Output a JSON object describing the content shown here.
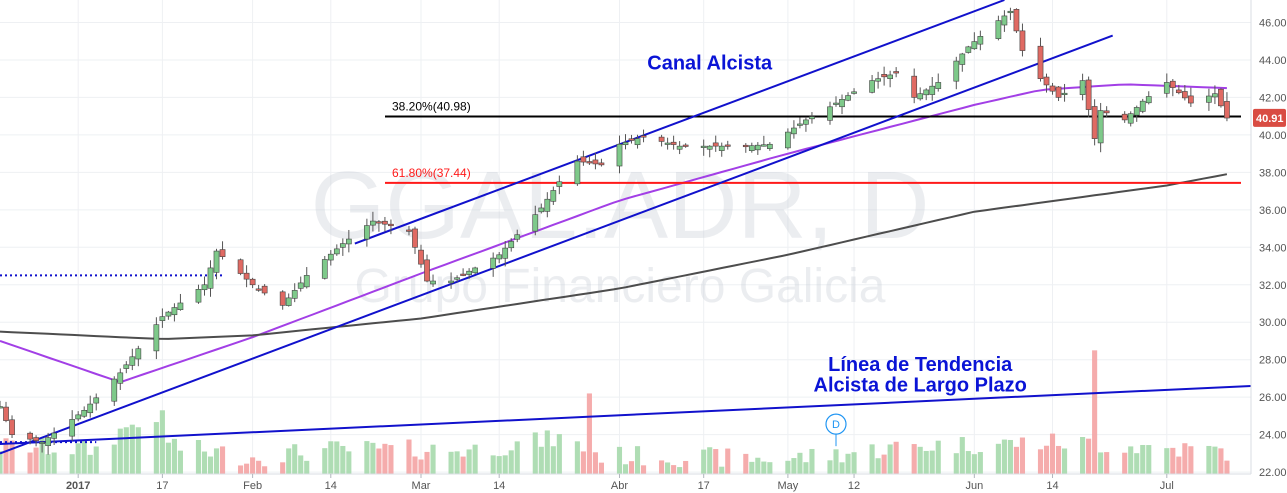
{
  "chart_data": {
    "type": "candlestick",
    "symbol_watermark": "GGAL.ADR, D",
    "company_watermark": "Grupo Financiero Galicia",
    "y_axis": {
      "ticks": [
        22.0,
        24.0,
        26.0,
        28.0,
        30.0,
        32.0,
        34.0,
        36.0,
        38.0,
        40.0,
        42.0,
        44.0,
        46.0
      ],
      "range": [
        21.9,
        47.2
      ]
    },
    "x_axis": {
      "range": [
        "2016-12-21",
        "2017-07-17"
      ],
      "ticks": [
        {
          "label": "2017",
          "date": "2017-01-03",
          "bold": true
        },
        {
          "label": "17",
          "date": "2017-01-17"
        },
        {
          "label": "Feb",
          "date": "2017-02-01"
        },
        {
          "label": "14",
          "date": "2017-02-14"
        },
        {
          "label": "Mar",
          "date": "2017-03-01"
        },
        {
          "label": "14",
          "date": "2017-03-14"
        },
        {
          "label": "Abr",
          "date": "2017-04-03"
        },
        {
          "label": "17",
          "date": "2017-04-17"
        },
        {
          "label": "May",
          "date": "2017-05-01"
        },
        {
          "label": "12",
          "date": "2017-05-12"
        },
        {
          "label": "Jun",
          "date": "2017-06-01"
        },
        {
          "label": "14",
          "date": "2017-06-14"
        },
        {
          "label": "Jul",
          "date": "2017-07-03"
        }
      ]
    },
    "price_waypoints": [
      [
        "2016-12-21",
        25.5
      ],
      [
        "2016-12-23",
        24.0
      ],
      [
        "2016-12-28",
        23.6
      ],
      [
        "2017-01-04",
        25.3
      ],
      [
        "2017-01-10",
        27.3
      ],
      [
        "2017-01-17",
        30.3
      ],
      [
        "2017-01-24",
        32.0
      ],
      [
        "2017-01-26",
        33.8
      ],
      [
        "2017-02-01",
        32.0
      ],
      [
        "2017-02-06",
        30.9
      ],
      [
        "2017-02-10",
        32.5
      ],
      [
        "2017-02-16",
        34.2
      ],
      [
        "2017-02-21",
        35.4
      ],
      [
        "2017-02-27",
        34.9
      ],
      [
        "2017-03-02",
        32.2
      ],
      [
        "2017-03-06",
        32.2
      ],
      [
        "2017-03-14",
        33.6
      ],
      [
        "2017-03-21",
        36.1
      ],
      [
        "2017-03-24",
        37.5
      ],
      [
        "2017-03-27",
        38.6
      ],
      [
        "2017-03-31",
        38.4
      ],
      [
        "2017-04-03",
        39.5
      ],
      [
        "2017-04-07",
        39.9
      ],
      [
        "2017-04-13",
        39.4
      ],
      [
        "2017-04-24",
        39.4
      ],
      [
        "2017-04-28",
        39.5
      ],
      [
        "2017-05-04",
        40.8
      ],
      [
        "2017-05-08",
        41.5
      ],
      [
        "2017-05-15",
        42.9
      ],
      [
        "2017-05-19",
        43.3
      ],
      [
        "2017-05-22",
        42.0
      ],
      [
        "2017-05-26",
        42.8
      ],
      [
        "2017-05-31",
        44.7
      ],
      [
        "2017-06-05",
        46.1
      ],
      [
        "2017-06-07",
        46.6
      ],
      [
        "2017-06-09",
        44.5
      ],
      [
        "2017-06-12",
        43.0
      ],
      [
        "2017-06-15",
        42.0
      ],
      [
        "2017-06-19",
        42.9
      ],
      [
        "2017-06-21",
        39.8
      ],
      [
        "2017-06-22",
        41.3
      ],
      [
        "2017-06-26",
        40.8
      ],
      [
        "2017-06-29",
        41.8
      ],
      [
        "2017-07-03",
        42.8
      ],
      [
        "2017-07-07",
        41.7
      ],
      [
        "2017-07-11",
        42.2
      ],
      [
        "2017-07-13",
        40.9
      ]
    ],
    "volume_waypoints": [
      [
        "2016-12-21",
        23.4
      ],
      [
        "2017-01-06",
        23.2
      ],
      [
        "2017-01-11",
        24.4
      ],
      [
        "2017-01-13",
        24.8
      ],
      [
        "2017-01-20",
        23.3
      ],
      [
        "2017-02-01",
        22.8
      ],
      [
        "2017-02-14",
        23.2
      ],
      [
        "2017-03-10",
        23.2
      ],
      [
        "2017-03-24",
        23.8
      ],
      [
        "2017-03-31",
        22.9
      ],
      [
        "2017-05-01",
        22.7
      ],
      [
        "2017-05-22",
        23.4
      ],
      [
        "2017-06-15",
        23.6
      ],
      [
        "2017-07-13",
        23.1
      ]
    ],
    "volume_spikes": [
      [
        "2017-03-29",
        26.2
      ],
      [
        "2017-06-21",
        28.5
      ],
      [
        "2017-01-17",
        25.3
      ]
    ],
    "indicators": [
      {
        "name": "SMA rápida",
        "color": "#a23fe6",
        "points": [
          [
            "2016-12-21",
            29.0
          ],
          [
            "2017-01-10",
            26.8
          ],
          [
            "2017-02-01",
            29.2
          ],
          [
            "2017-03-01",
            32.6
          ],
          [
            "2017-04-03",
            36.5
          ],
          [
            "2017-05-01",
            39.0
          ],
          [
            "2017-06-01",
            41.6
          ],
          [
            "2017-06-12",
            42.4
          ],
          [
            "2017-06-26",
            42.7
          ],
          [
            "2017-07-13",
            42.5
          ]
        ]
      },
      {
        "name": "SMA lenta",
        "color": "#4d4d4d",
        "points": [
          [
            "2016-12-21",
            29.5
          ],
          [
            "2017-01-17",
            29.1
          ],
          [
            "2017-02-01",
            29.3
          ],
          [
            "2017-03-01",
            30.2
          ],
          [
            "2017-04-03",
            31.8
          ],
          [
            "2017-05-01",
            33.6
          ],
          [
            "2017-06-01",
            35.9
          ],
          [
            "2017-07-03",
            37.3
          ],
          [
            "2017-07-13",
            37.9
          ]
        ]
      }
    ],
    "trend_lines": [
      {
        "name": "canal-upper",
        "from": [
          "2017-02-18",
          34.2
        ],
        "to": [
          "2017-06-06",
          47.2
        ],
        "color": "#1111cc"
      },
      {
        "name": "canal-lower",
        "from": [
          "2016-12-21",
          23.0
        ],
        "to": [
          "2017-06-24",
          45.3
        ],
        "color": "#1111cc"
      },
      {
        "name": "largo-plazo",
        "from": [
          "2016-12-21",
          23.5
        ],
        "to": [
          "2017-07-17",
          26.6
        ],
        "color": "#1111cc"
      }
    ],
    "horizontal_levels": [
      {
        "label": "38.20%(40.98)",
        "value": 40.98,
        "color": "#000000"
      },
      {
        "label": "61.80%(37.44)",
        "value": 37.44,
        "color": "#ff1a1a"
      },
      {
        "label": "",
        "value": 32.5,
        "color": "#1111cc",
        "dotted": true,
        "to": "2017-01-27"
      },
      {
        "label": "",
        "value": 23.6,
        "color": "#1111cc",
        "dotted": true,
        "to": "2017-01-06"
      }
    ],
    "annotations": [
      {
        "text": "Canal Alcista",
        "anchor_date": "2017-04-18",
        "anchor_value": 43.5
      },
      {
        "text": "Línea de Tendencia",
        "anchor_date": "2017-05-23",
        "anchor_value": 27.4
      },
      {
        "text": "Alcista de Largo Plazo",
        "anchor_date": "2017-05-23",
        "anchor_value": 26.3
      }
    ],
    "dividend_marker": {
      "text": "D",
      "date": "2017-05-09",
      "value": 23.6
    },
    "last_price": {
      "label": "40.91",
      "value": 40.91,
      "color": "#d94c43"
    },
    "colors": {
      "up": "#7ec98a",
      "down": "#e06a63",
      "vol_up": "#a6d9ac",
      "vol_down": "#f4a3a3"
    }
  }
}
